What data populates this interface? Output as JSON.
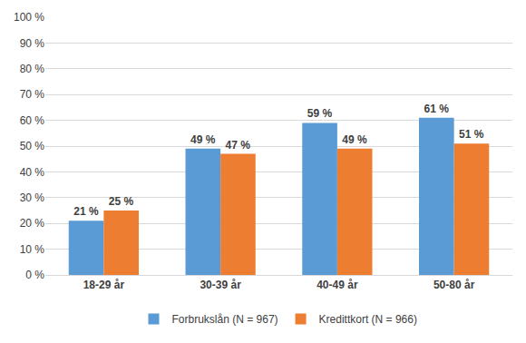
{
  "chart_data": {
    "type": "bar",
    "categories": [
      "18-29 år",
      "30-39 år",
      "40-49 år",
      "50-80 år"
    ],
    "series": [
      {
        "name": "Forbrukslån (N = 967)",
        "color": "#5b9bd5",
        "values": [
          21,
          49,
          59,
          61
        ],
        "value_labels": [
          "21 %",
          "49 %",
          "59 %",
          "61 %"
        ]
      },
      {
        "name": "Kredittkort (N = 966)",
        "color": "#ed7d31",
        "values": [
          25,
          47,
          49,
          51
        ],
        "value_labels": [
          "25 %",
          "47 %",
          "49 %",
          "51 %"
        ]
      }
    ],
    "ylim": [
      0,
      100
    ],
    "yticks": [
      {
        "value": 0,
        "label": "0 %"
      },
      {
        "value": 10,
        "label": "10 %"
      },
      {
        "value": 20,
        "label": "20 %"
      },
      {
        "value": 30,
        "label": "30 %"
      },
      {
        "value": 40,
        "label": "40 %"
      },
      {
        "value": 50,
        "label": "50 %"
      },
      {
        "value": 60,
        "label": "60 %"
      },
      {
        "value": 70,
        "label": "70 %"
      },
      {
        "value": 80,
        "label": "80 %"
      },
      {
        "value": 90,
        "label": "90 %"
      },
      {
        "value": 100,
        "label": "100 %"
      }
    ],
    "grid": true,
    "legend": "bottom",
    "data_labels": true
  }
}
